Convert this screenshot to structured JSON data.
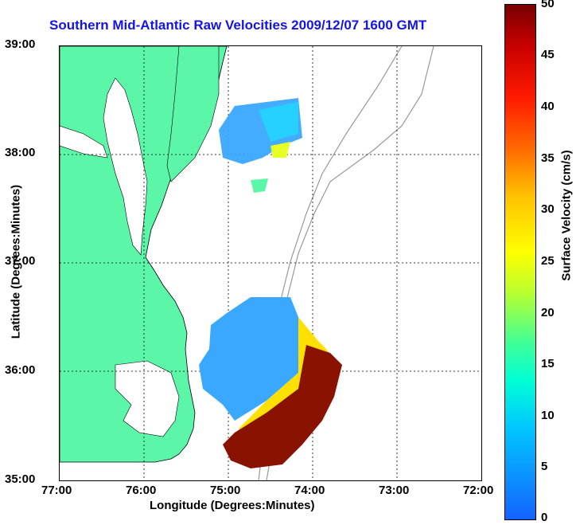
{
  "title": "Southern Mid-Atlantic Raw Velocities 2009/12/07 1600 GMT",
  "xlabel": "Longitude (Degrees:Minutes)",
  "ylabel": "Latitude (Degrees:Minutes)",
  "colorbar_label": "Surface Velocity (cm/s)",
  "x_ticks": [
    "77:00",
    "76:00",
    "75:00",
    "74:00",
    "73:00",
    "72:00"
  ],
  "y_ticks": [
    "39:00",
    "38:00",
    "37:00",
    "36:00",
    "35:00"
  ],
  "colorbar_ticks": [
    "50",
    "45",
    "40",
    "35",
    "30",
    "25",
    "20",
    "15",
    "10",
    "5",
    "0"
  ],
  "colors": {
    "land": "#5cf6a8",
    "title": "#1414e6",
    "grid": "#000000",
    "bathymetry": "#999999"
  }
}
